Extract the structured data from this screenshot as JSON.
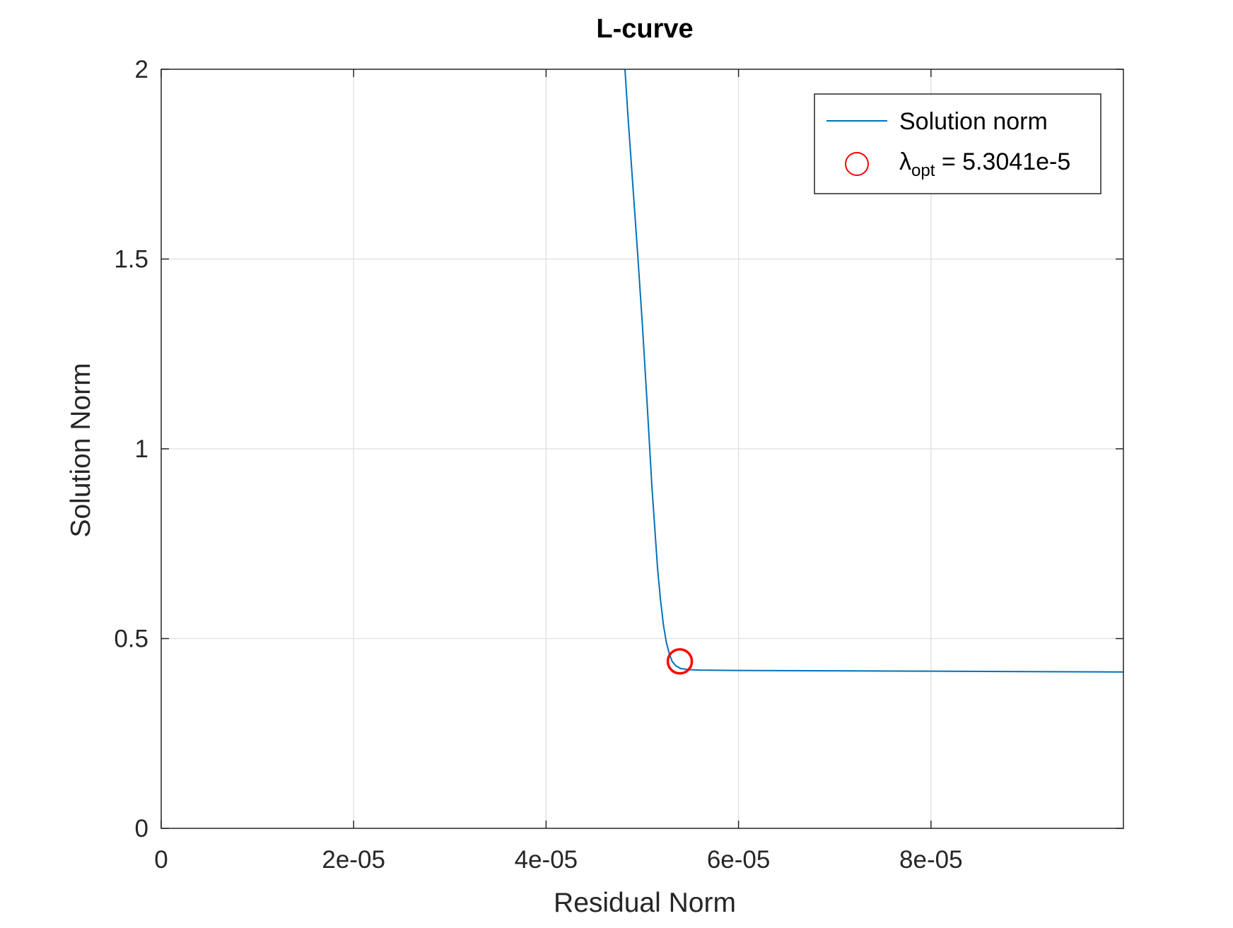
{
  "chart_data": {
    "type": "line",
    "title": "L-curve",
    "xlabel": "Residual Norm",
    "ylabel": "Solution Norm",
    "xlim": [
      0,
      0.0001
    ],
    "ylim": [
      0,
      2
    ],
    "grid": true,
    "legend_position": "top-right",
    "x_ticks": [
      {
        "value": 0,
        "label": "0"
      },
      {
        "value": 2e-05,
        "label": "2e-05"
      },
      {
        "value": 4e-05,
        "label": "4e-05"
      },
      {
        "value": 6e-05,
        "label": "6e-05"
      },
      {
        "value": 8e-05,
        "label": "8e-05"
      }
    ],
    "y_ticks": [
      {
        "value": 0,
        "label": "0"
      },
      {
        "value": 0.5,
        "label": "0.5"
      },
      {
        "value": 1,
        "label": "1"
      },
      {
        "value": 1.5,
        "label": "1.5"
      },
      {
        "value": 2,
        "label": "2"
      }
    ],
    "series": [
      {
        "name": "Solution norm",
        "kind": "line",
        "color": "#0072bd",
        "x": [
          4.82e-05,
          4.85e-05,
          4.9e-05,
          4.95e-05,
          5e-05,
          5.05e-05,
          5.1e-05,
          5.13e-05,
          5.16e-05,
          5.19e-05,
          5.22e-05,
          5.25e-05,
          5.28e-05,
          5.31e-05,
          5.35e-05,
          5.4e-05,
          5.48e-05,
          5.6e-05,
          6e-05,
          7e-05,
          8e-05,
          9e-05,
          0.0001
        ],
        "y": [
          2.0,
          1.88,
          1.7,
          1.52,
          1.33,
          1.12,
          0.9,
          0.79,
          0.68,
          0.6,
          0.535,
          0.49,
          0.46,
          0.44,
          0.428,
          0.421,
          0.418,
          0.417,
          0.416,
          0.415,
          0.414,
          0.413,
          0.412
        ]
      },
      {
        "name": "λopt = 5.3041e-5",
        "kind": "marker",
        "marker": "circle",
        "color": "#ff0000",
        "x": [
          5.39e-05
        ],
        "y": [
          0.44
        ]
      }
    ],
    "legend": {
      "line_label": "Solution norm",
      "marker_label_prefix": "λ",
      "marker_label_sub": "opt",
      "marker_label_suffix": " = 5.3041e-5"
    }
  }
}
